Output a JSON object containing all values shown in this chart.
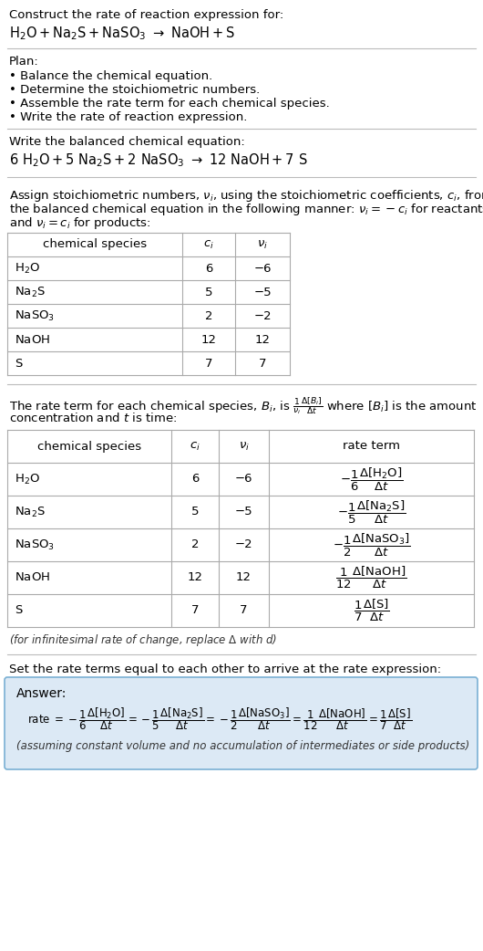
{
  "title_line1": "Construct the rate of reaction expression for:",
  "plan_header": "Plan:",
  "plan_items": [
    "• Balance the chemical equation.",
    "• Determine the stoichiometric numbers.",
    "• Assemble the rate term for each chemical species.",
    "• Write the rate of reaction expression."
  ],
  "balanced_header": "Write the balanced chemical equation:",
  "stoich_header_lines": [
    "Assign stoichiometric numbers, $\\nu_i$, using the stoichiometric coefficients, $c_i$, from",
    "the balanced chemical equation in the following manner: $\\nu_i = -c_i$ for reactants",
    "and $\\nu_i = c_i$ for products:"
  ],
  "table1_rows": [
    [
      "H_2O",
      "6",
      "−6"
    ],
    [
      "Na_2S",
      "5",
      "−5"
    ],
    [
      "NaSO_3",
      "2",
      "−2"
    ],
    [
      "NaOH",
      "12",
      "12"
    ],
    [
      "S",
      "7",
      "7"
    ]
  ],
  "rate_header_lines": [
    "The rate term for each chemical species, $B_i$, is $\\frac{1}{\\nu_i}\\frac{\\Delta[B_i]}{\\Delta t}$ where $[B_i]$ is the amount",
    "concentration and $t$ is time:"
  ],
  "table2_rows": [
    [
      "H_2O",
      "6",
      "−6"
    ],
    [
      "Na_2S",
      "5",
      "−5"
    ],
    [
      "NaSO_3",
      "2",
      "−2"
    ],
    [
      "NaOH",
      "12",
      "12"
    ],
    [
      "S",
      "7",
      "7"
    ]
  ],
  "infinitesimal_note": "(for infinitesimal rate of change, replace Δ with $d$)",
  "set_equal_header": "Set the rate terms equal to each other to arrive at the rate expression:",
  "answer_box_color": "#dce9f5",
  "answer_border_color": "#7ab0d4",
  "bg_color": "#ffffff",
  "text_color": "#000000",
  "table_line_color": "#aaaaaa",
  "separator_color": "#bbbbbb"
}
